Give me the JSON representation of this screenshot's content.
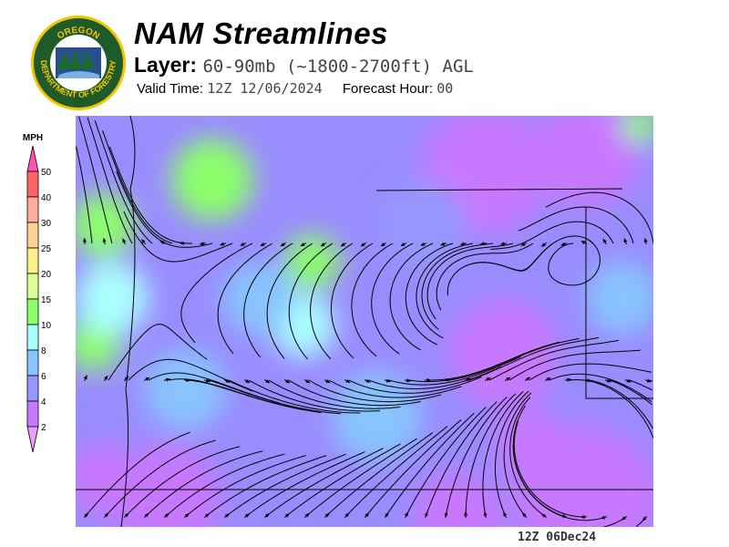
{
  "header": {
    "title": "NAM Streamlines",
    "layer_label": "Layer:",
    "layer_value": "60-90mb (~1800-2700ft) AGL",
    "valid_label": "Valid Time:",
    "valid_value": "12Z 12/06/2024",
    "forecast_label": "Forecast Hour:",
    "forecast_value": "00"
  },
  "logo": {
    "top_text": "OREGON",
    "bottom_text": "DEPARTMENT OF FORESTRY"
  },
  "legend": {
    "unit": "MPH",
    "ticks": [
      "50",
      "40",
      "30",
      "25",
      "20",
      "15",
      "10",
      "8",
      "6",
      "4",
      "2"
    ],
    "colors": {
      "over": "#ff55b0",
      "bands": [
        "#ff6464",
        "#ffaca0",
        "#ffd294",
        "#fff08c",
        "#dcff9a",
        "#8cff6a",
        "#aaffff",
        "#88c4ff",
        "#9696ff",
        "#c878ff"
      ],
      "under": "#ec9cff"
    }
  },
  "footer": {
    "timestamp": "12Z 06Dec24"
  }
}
